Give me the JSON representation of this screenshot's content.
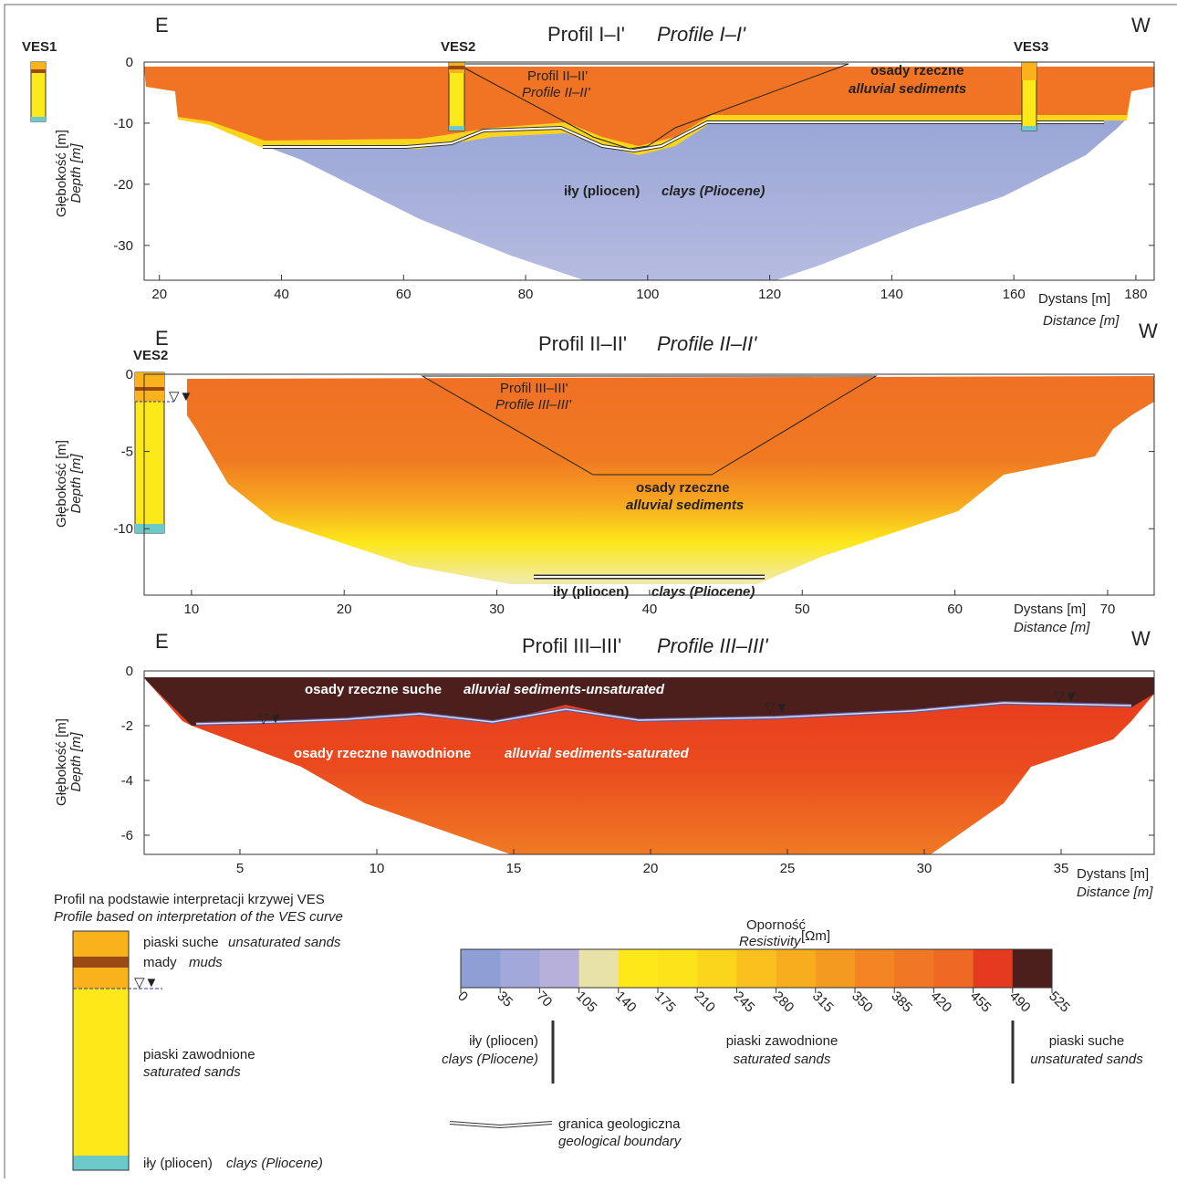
{
  "profiles": [
    {
      "east": "E",
      "west": "W",
      "title": "Profil I–I'",
      "title_en": "Profile I–I'",
      "depth": "Głębokość [m]",
      "depth_en": "Depth [m]",
      "distance": "Dystans [m]",
      "distance_en": "Distance [m]",
      "xlim": [
        17.5,
        183
      ],
      "ylim": [
        -35.7,
        0
      ],
      "xticks": [
        20,
        40,
        60,
        80,
        100,
        120,
        140,
        160,
        180
      ],
      "yticks": [
        0,
        -10,
        -20,
        -30
      ],
      "notes": [
        "VES1",
        "VES2",
        "VES3",
        "Profil II–II'",
        "Profile II–II'",
        "osady rzeczne",
        "alluvial sediments",
        "iły (pliocen)",
        "clays (Pliocene)"
      ]
    },
    {
      "east": "E",
      "west": "W",
      "title": "Profil II–II'",
      "title_en": "Profile II–II'",
      "depth": "Głębokość [m]",
      "depth_en": "Depth [m]",
      "distance": "Dystans [m]",
      "distance_en": "Distance [m]",
      "xlim": [
        6.9,
        73.05
      ],
      "ylim": [
        -14.3,
        0
      ],
      "xticks": [
        10,
        20,
        30,
        40,
        50,
        60,
        70
      ],
      "yticks": [
        0,
        -5,
        -10
      ],
      "notes": [
        "VES2",
        "Profil III–III'",
        "Profile III–III'",
        "osady rzeczne",
        "alluvial sediments",
        "iły (pliocen)",
        "clays (Pliocene)"
      ]
    },
    {
      "east": "E",
      "west": "W",
      "title": "Profil III–III'",
      "title_en": "Profile III–III'",
      "depth": "Głębokość [m]",
      "depth_en": "Depth [m]",
      "distance": "Dystans [m]",
      "distance_en": "Distance [m]",
      "xlim": [
        1.5,
        38.4
      ],
      "ylim": [
        -6.7,
        0
      ],
      "xticks": [
        5,
        10,
        15,
        20,
        25,
        30,
        35
      ],
      "yticks": [
        0,
        -2,
        -4,
        -6
      ],
      "notes": [
        "osady rzeczne suche",
        "alluvial sediments-unsaturated",
        "osady rzeczne nawodnione",
        "alluvial sediments-saturated"
      ]
    }
  ],
  "ves_legend": {
    "title": "Profil na podstawie interpretacji krzywej VES",
    "title_en": "Profile based on interpretation of the VES curve",
    "items": [
      [
        "piaski suche",
        "unsaturated sands"
      ],
      [
        "mady",
        "muds"
      ],
      [
        "piaski zawodnione",
        "saturated sands"
      ],
      [
        "iły (pliocen)",
        "clays (Pliocene)"
      ]
    ]
  },
  "colorbar": {
    "title": "Oporność",
    "title_en": "Resistivity",
    "unit": "[Ωm]",
    "ticks": [
      0,
      35,
      70,
      105,
      140,
      175,
      210,
      245,
      280,
      315,
      350,
      385,
      420,
      455,
      490,
      525
    ],
    "classes": [
      [
        "iły (pliocen)",
        "clays (Pliocene)"
      ],
      [
        "piaski zawodnione",
        "saturated sands"
      ],
      [
        "piaski suche",
        "unsaturated sands"
      ]
    ]
  },
  "boundary": {
    "label": "granica geologiczna",
    "label_en": "geological boundary"
  }
}
